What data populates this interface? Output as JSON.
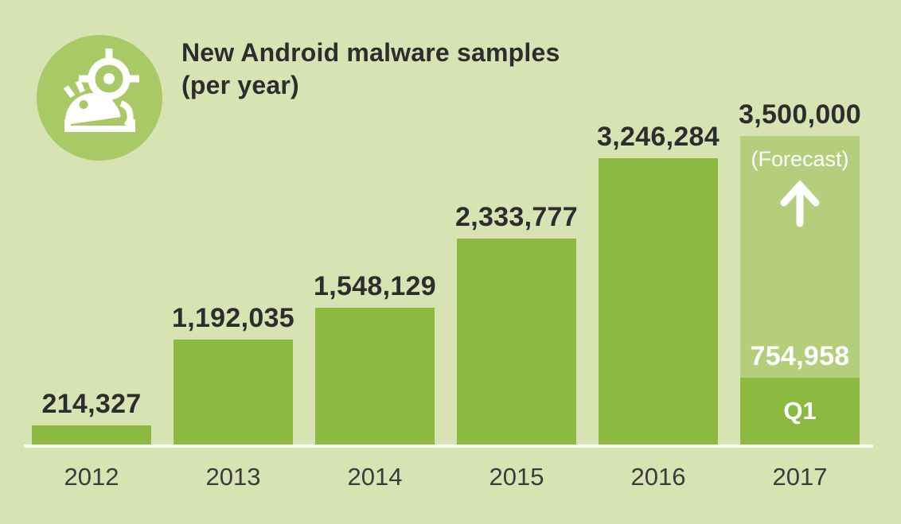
{
  "title": {
    "line1": "New Android malware samples",
    "line2": "(per year)"
  },
  "icon": {
    "label": "android-malware-scope-badge"
  },
  "colors": {
    "background": "#d8e3b4",
    "bar": "#8cba41",
    "forecast_bar": "#b5ce7c",
    "icon_circle": "#a9c967",
    "axis_line": "#fbfdf1",
    "text_dark": "#2d2d2d",
    "year_text": "#3b3b3b",
    "on_bar_text": "#ffffff"
  },
  "chart_data": {
    "type": "bar",
    "title": "New Android malware samples (per year)",
    "categories": [
      "2012",
      "2013",
      "2014",
      "2015",
      "2016",
      "2017"
    ],
    "values": [
      214327,
      1192035,
      1548129,
      2333777,
      3246284,
      3500000
    ],
    "value_labels": [
      "214,327",
      "1,192,035",
      "1,548,129",
      "2,333,777",
      "3,246,284",
      "3,500,000"
    ],
    "ylim": [
      0,
      3500000
    ],
    "grid": false,
    "legend": "none",
    "forecast": {
      "year": "2017",
      "value": 3500000,
      "note": "(Forecast)",
      "arrow": "up",
      "q1_value": 754958,
      "q1_label": "754,958",
      "q1_caption": "Q1"
    }
  }
}
